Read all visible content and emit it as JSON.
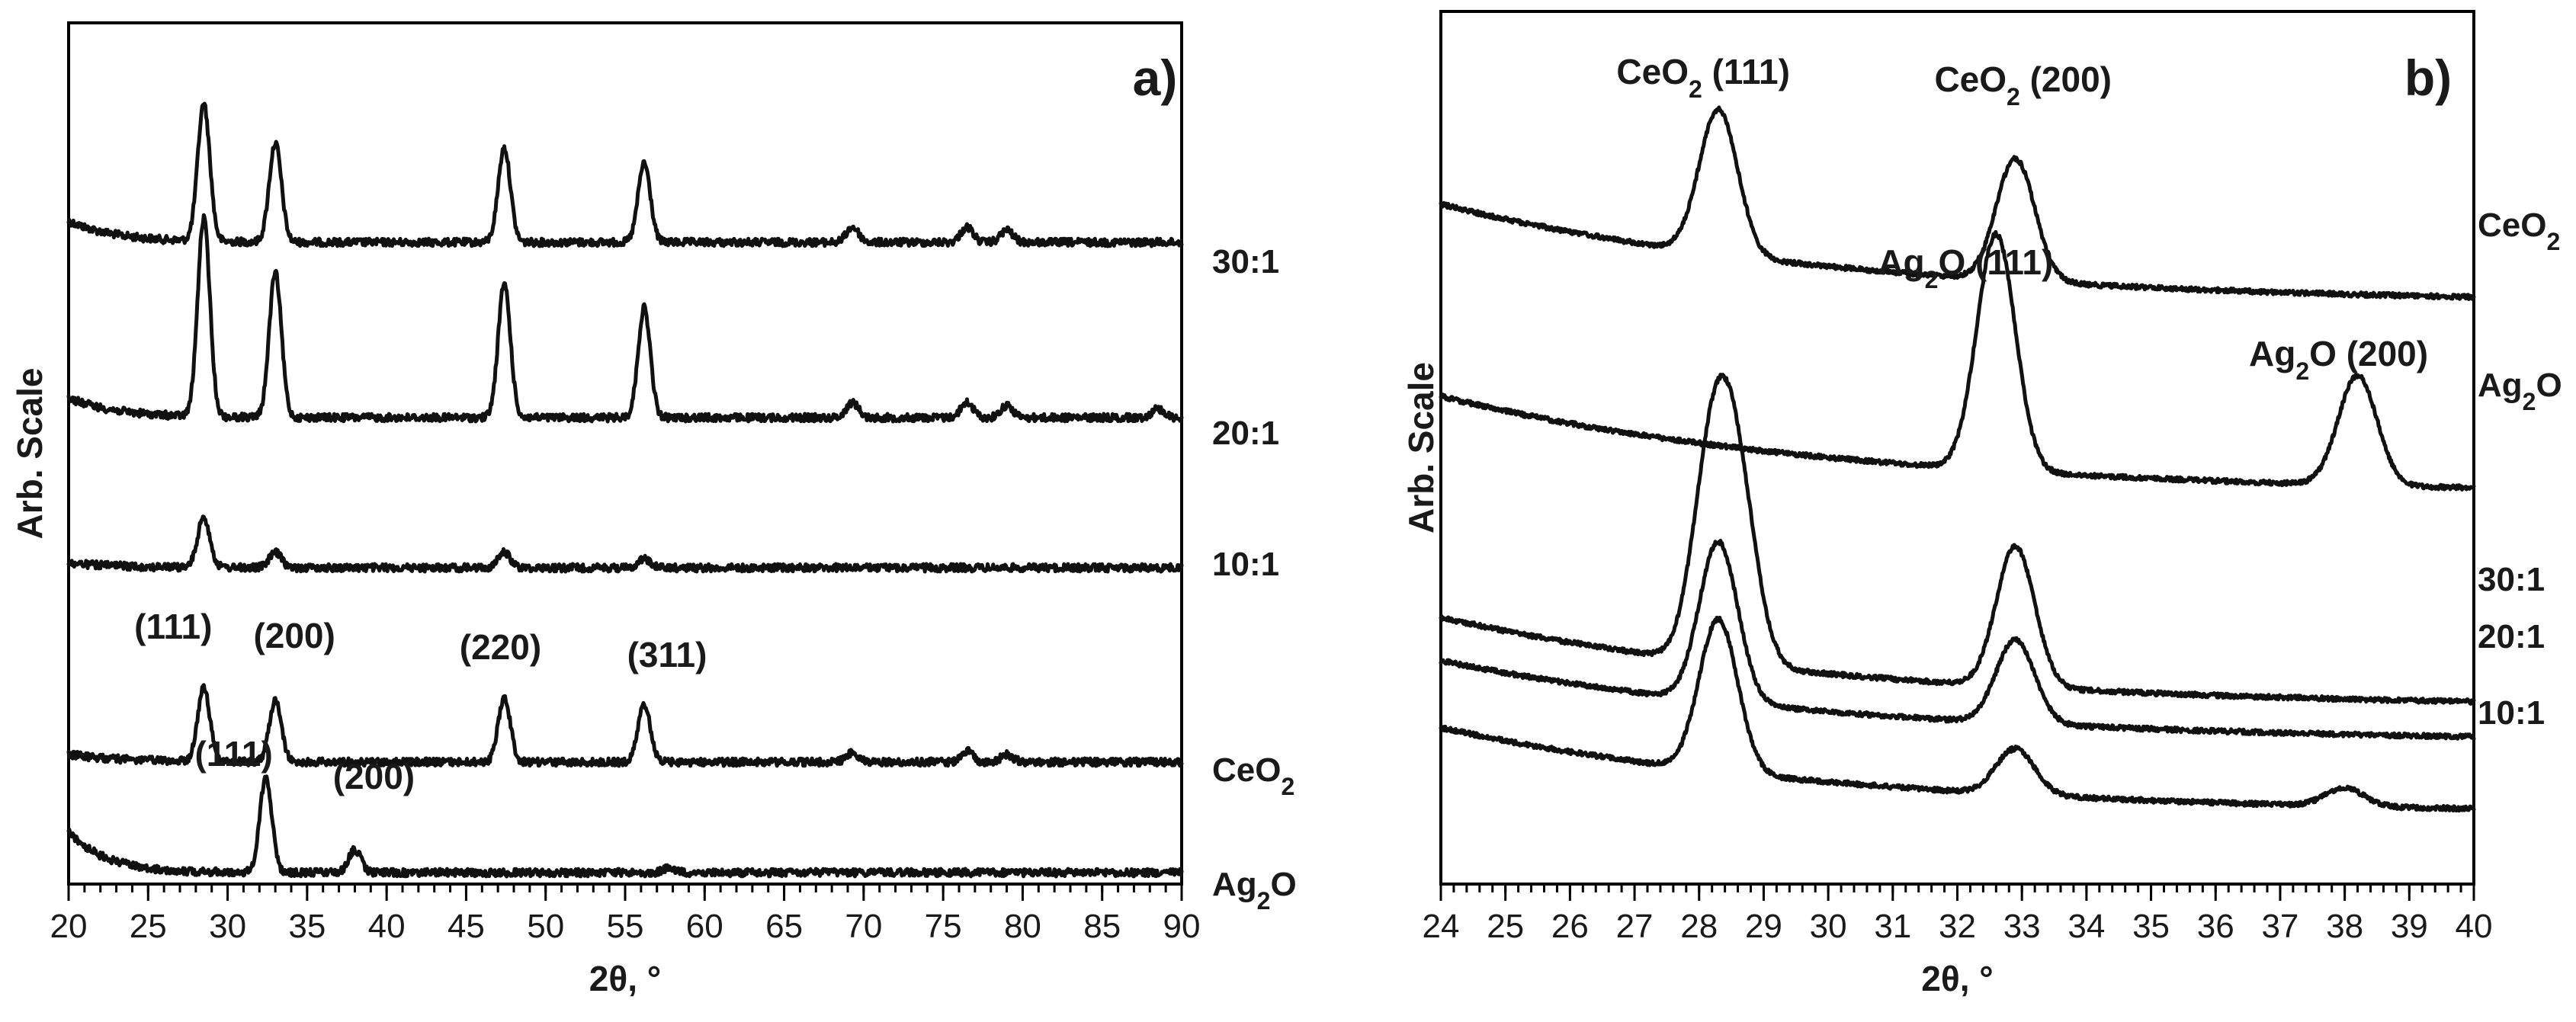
{
  "chart_data": [
    {
      "panel": "a)",
      "type": "line",
      "xlabel": "2θ, °",
      "ylabel": "Arb. Scale",
      "xlim": [
        20,
        90
      ],
      "xticks": [
        20,
        25,
        30,
        35,
        40,
        45,
        50,
        55,
        60,
        65,
        70,
        75,
        80,
        85,
        90
      ],
      "series": [
        {
          "name": "30:1",
          "baseline_text": "30:1",
          "peaks": [
            {
              "x": 28.5,
              "height": 0.9
            },
            {
              "x": 33.0,
              "height": 0.65
            },
            {
              "x": 47.4,
              "height": 0.62
            },
            {
              "x": 56.2,
              "height": 0.52
            },
            {
              "x": 69.3,
              "height": 0.1
            },
            {
              "x": 76.5,
              "height": 0.1
            },
            {
              "x": 79.0,
              "height": 0.08
            }
          ]
        },
        {
          "name": "20:1",
          "baseline_text": "20:1",
          "peaks": [
            {
              "x": 28.5,
              "height": 1.3
            },
            {
              "x": 33.0,
              "height": 0.95
            },
            {
              "x": 47.4,
              "height": 0.88
            },
            {
              "x": 56.2,
              "height": 0.72
            },
            {
              "x": 69.3,
              "height": 0.1
            },
            {
              "x": 76.5,
              "height": 0.1
            },
            {
              "x": 79.0,
              "height": 0.08
            },
            {
              "x": 88.5,
              "height": 0.06
            }
          ]
        },
        {
          "name": "10:1",
          "baseline_text": "10:1",
          "peaks": [
            {
              "x": 28.5,
              "height": 0.33
            },
            {
              "x": 33.0,
              "height": 0.1
            },
            {
              "x": 47.4,
              "height": 0.1
            },
            {
              "x": 56.2,
              "height": 0.06
            }
          ]
        },
        {
          "name": "CeO2",
          "label_base": "CeO",
          "label_sub": "2",
          "peaks": [
            {
              "x": 28.5,
              "height": 0.48
            },
            {
              "x": 33.0,
              "height": 0.4
            },
            {
              "x": 47.4,
              "height": 0.42
            },
            {
              "x": 56.2,
              "height": 0.38
            },
            {
              "x": 69.3,
              "height": 0.06
            },
            {
              "x": 76.5,
              "height": 0.07
            },
            {
              "x": 79.0,
              "height": 0.05
            }
          ]
        },
        {
          "name": "Ag2O",
          "label_base": "Ag",
          "label_sub": "2",
          "label_tail": "O",
          "peaks": [
            {
              "x": 32.4,
              "height": 0.62
            },
            {
              "x": 38.0,
              "height": 0.15
            },
            {
              "x": 57.8,
              "height": 0.03
            }
          ]
        }
      ],
      "annotations": [
        {
          "text": "(111)",
          "series": "CeO2",
          "x": 28.5
        },
        {
          "text": "(200)",
          "series": "CeO2",
          "x": 33.0
        },
        {
          "text": "(220)",
          "series": "CeO2",
          "x": 47.4
        },
        {
          "text": "(311)",
          "series": "CeO2",
          "x": 56.2
        },
        {
          "text": "(111)",
          "series": "Ag2O",
          "x": 32.4
        },
        {
          "text": "(200)",
          "series": "Ag2O",
          "x": 38.0
        }
      ]
    },
    {
      "panel": "b)",
      "type": "line",
      "xlabel": "2θ, °",
      "ylabel": "Arb. Scale",
      "xlim": [
        24,
        40
      ],
      "xticks": [
        24,
        25,
        26,
        27,
        28,
        29,
        30,
        31,
        32,
        33,
        34,
        35,
        36,
        37,
        38,
        39,
        40
      ],
      "series": [
        {
          "name": "CeO2",
          "label_base": "CeO",
          "label_sub": "2",
          "peaks": [
            {
              "x": 28.3,
              "height": 0.95
            },
            {
              "x": 32.9,
              "height": 0.8
            }
          ]
        },
        {
          "name": "Ag2O",
          "label_base": "Ag",
          "label_sub": "2",
          "label_tail": "O",
          "peaks": [
            {
              "x": 32.6,
              "height": 1.55
            },
            {
              "x": 38.2,
              "height": 0.72
            }
          ]
        },
        {
          "name": "30:1",
          "baseline_text": "30:1",
          "peaks": [
            {
              "x": 28.2,
              "height": 1.3
            },
            {
              "x": 28.6,
              "height": 1.05
            },
            {
              "x": 32.9,
              "height": 0.92
            }
          ]
        },
        {
          "name": "20:1",
          "baseline_text": "20:1",
          "peaks": [
            {
              "x": 28.3,
              "height": 1.05
            },
            {
              "x": 32.9,
              "height": 0.55
            }
          ]
        },
        {
          "name": "10:1",
          "baseline_text": "10:1",
          "peaks": [
            {
              "x": 28.3,
              "height": 1.0
            },
            {
              "x": 32.9,
              "height": 0.3
            },
            {
              "x": 38.0,
              "height": 0.12
            }
          ]
        }
      ],
      "annotations": [
        {
          "base": "CeO",
          "sub": "2",
          "tail": " (111)",
          "series": "CeO2",
          "x": 28.3
        },
        {
          "base": "CeO",
          "sub": "2",
          "tail": " (200)",
          "series": "CeO2",
          "x": 32.9
        },
        {
          "base": "Ag",
          "sub": "2",
          "tail": "O (111)",
          "series": "Ag2O",
          "x": 32.6
        },
        {
          "base": "Ag",
          "sub": "2",
          "tail": "O (200)",
          "series": "Ag2O",
          "x": 38.2
        }
      ]
    }
  ]
}
